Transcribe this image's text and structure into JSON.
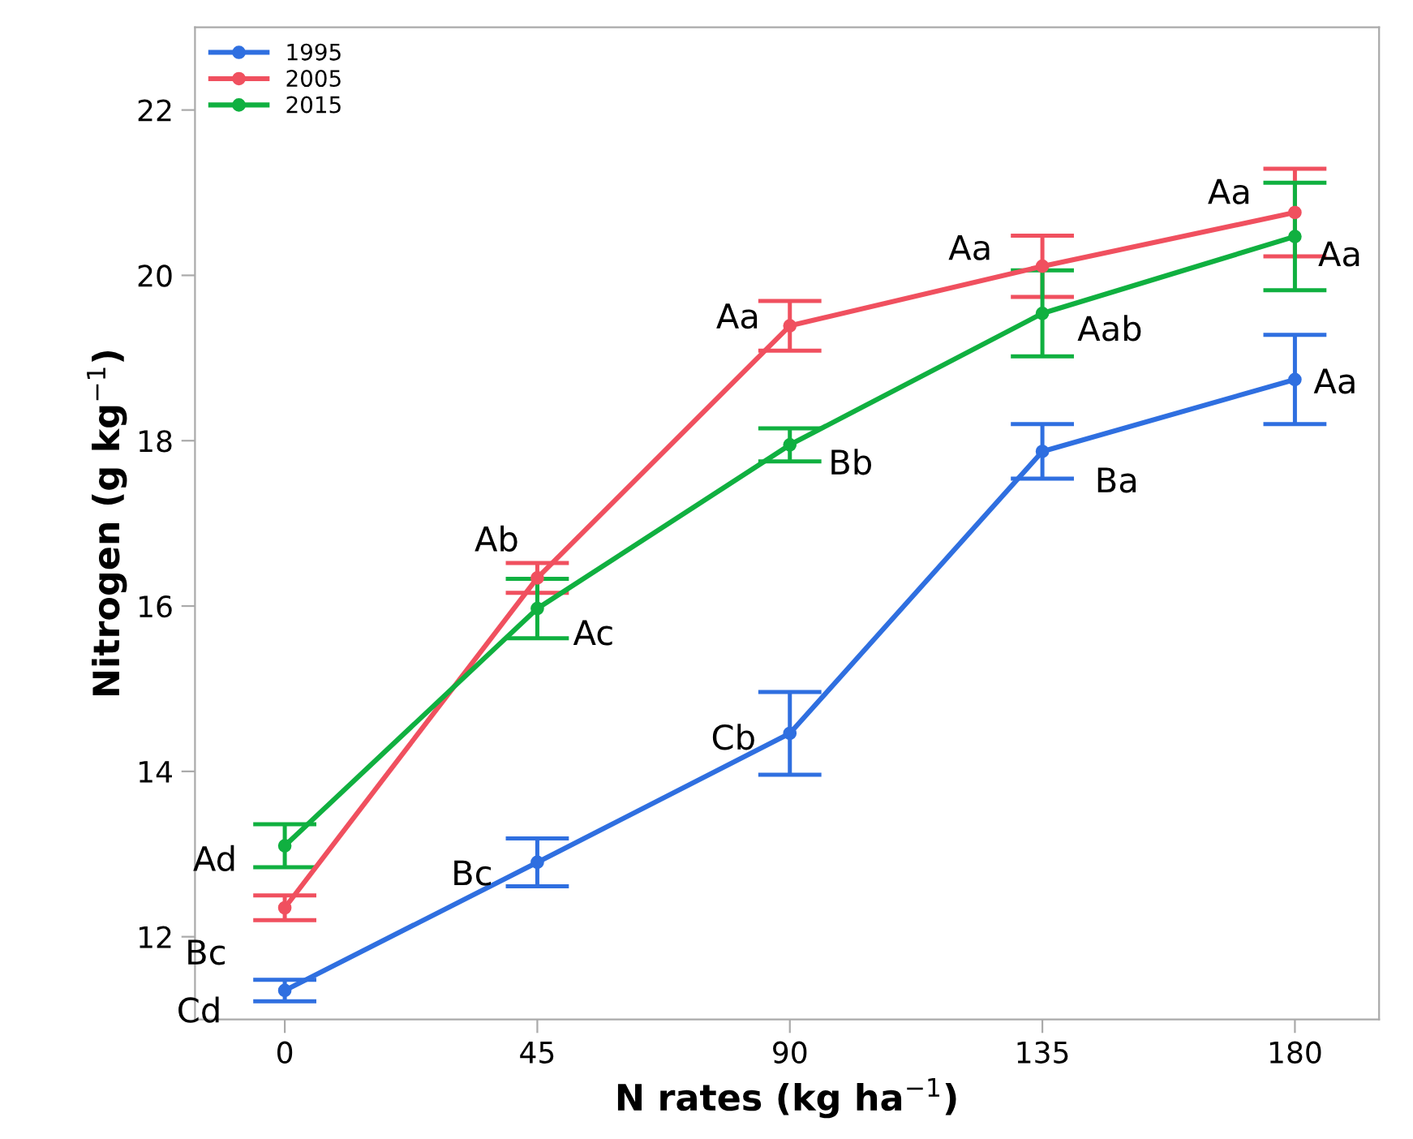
{
  "chart_data": {
    "type": "line",
    "xlabel": "N rates (kg ha$^{−1}$)",
    "ylabel": "Nitrogen (g kg$^{−1}$)",
    "x": [
      0,
      45,
      90,
      135,
      180
    ],
    "xlim": [
      -16,
      195
    ],
    "xticks": [
      0,
      45,
      90,
      135,
      180
    ],
    "ylim": [
      11,
      23
    ],
    "yticks": [
      12,
      14,
      16,
      18,
      20,
      22
    ],
    "grid": false,
    "legend": "top left",
    "marker": "circle",
    "line_style": "solid",
    "series": [
      {
        "name": "1995",
        "color": "#2f6fe0",
        "values": [
          11.35,
          12.9,
          14.46,
          17.87,
          18.74
        ],
        "errors": [
          0.13,
          0.29,
          0.5,
          0.33,
          0.54
        ]
      },
      {
        "name": "2005",
        "color": "#f0505f",
        "values": [
          12.35,
          16.34,
          19.39,
          20.11,
          20.76
        ],
        "errors": [
          0.15,
          0.18,
          0.3,
          0.37,
          0.53
        ]
      },
      {
        "name": "2015",
        "color": "#10b040",
        "values": [
          13.1,
          15.97,
          17.95,
          19.54,
          20.47
        ],
        "errors": [
          0.26,
          0.36,
          0.2,
          0.52,
          0.65
        ]
      }
    ],
    "annotations": [
      {
        "text": "Cd",
        "x": 0,
        "y": 11.35
      },
      {
        "text": "Bc",
        "x": 45,
        "y": 12.9
      },
      {
        "text": "Cb",
        "x": 90,
        "y": 14.46
      },
      {
        "text": "Ba",
        "x": 135,
        "y": 17.87
      },
      {
        "text": "Aa",
        "x": 180,
        "y": 18.74
      },
      {
        "text": "Bc",
        "x": 0,
        "y": 12.35
      },
      {
        "text": "Ab",
        "x": 45,
        "y": 16.34
      },
      {
        "text": "Aa",
        "x": 90,
        "y": 19.39
      },
      {
        "text": "Aa",
        "x": 135,
        "y": 20.11
      },
      {
        "text": "Aa",
        "x": 180,
        "y": 20.76
      },
      {
        "text": "Ad",
        "x": 0,
        "y": 13.1
      },
      {
        "text": "Ac",
        "x": 45,
        "y": 15.97
      },
      {
        "text": "Bb",
        "x": 90,
        "y": 17.95
      },
      {
        "text": "Aab",
        "x": 135,
        "y": 19.54
      },
      {
        "text": "Aa",
        "x": 180,
        "y": 20.47
      }
    ]
  }
}
